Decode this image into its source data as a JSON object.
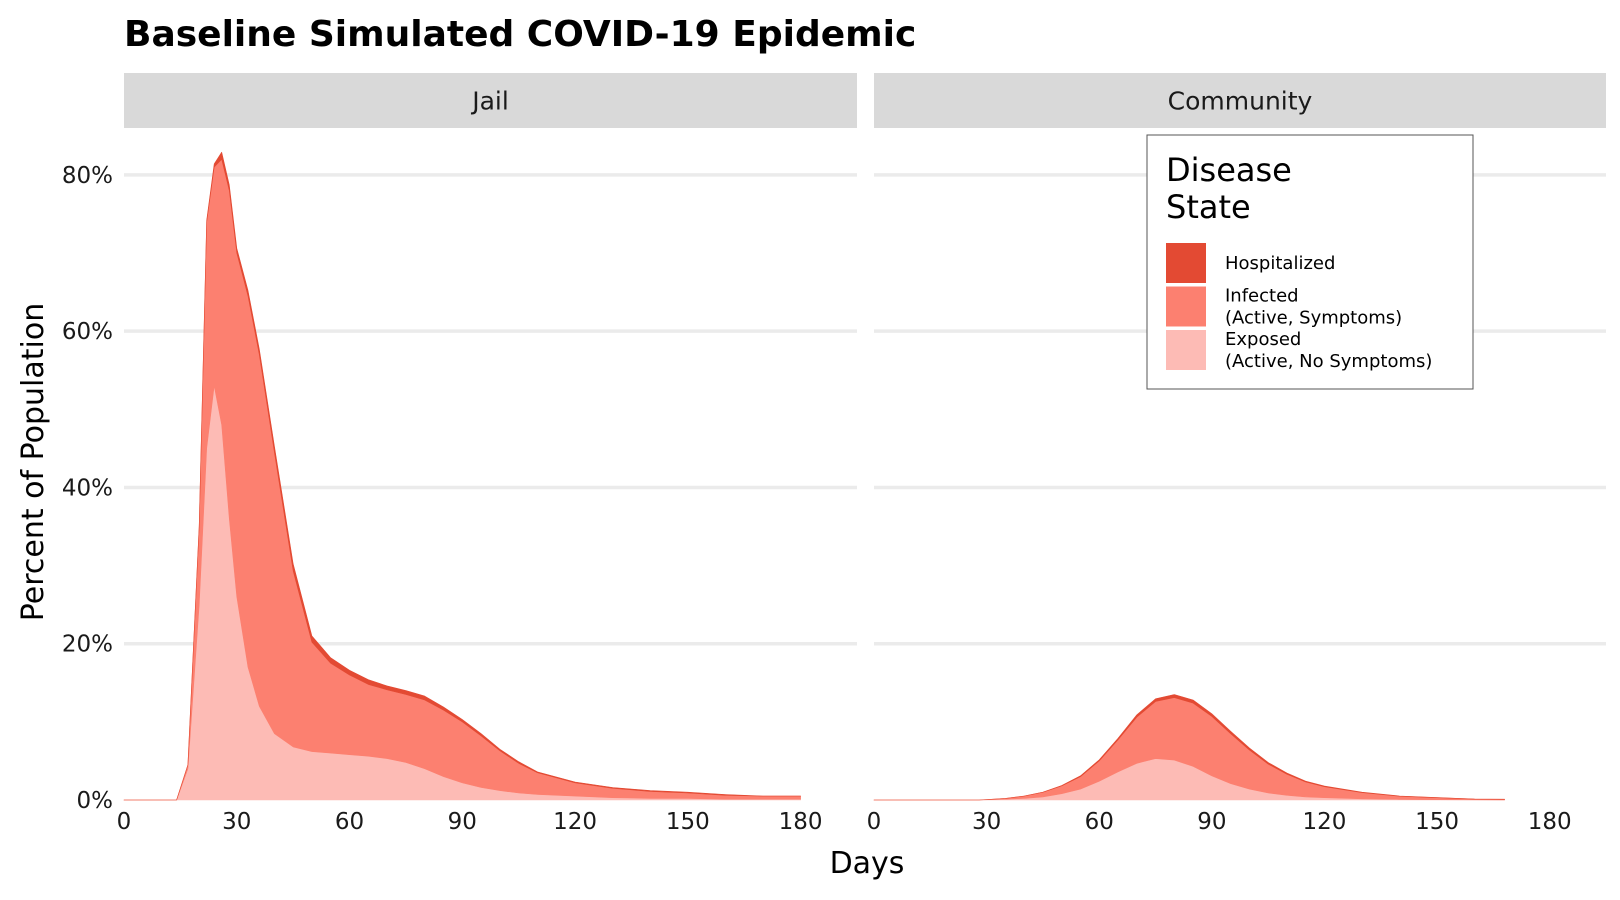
{
  "chart_data": {
    "type": "area",
    "stacked": true,
    "title": "Baseline Simulated COVID-19 Epidemic",
    "xlabel": "Days",
    "ylabel": "Percent of Population",
    "xlim": [
      0,
      195
    ],
    "ylim": [
      0,
      0.86
    ],
    "x_ticks": [
      0,
      30,
      60,
      90,
      120,
      150,
      180
    ],
    "y_ticks": [
      0,
      0.2,
      0.4,
      0.6,
      0.8
    ],
    "y_tick_labels": [
      "0%",
      "20%",
      "40%",
      "60%",
      "80%"
    ],
    "grid": true,
    "legend": {
      "title_lines": [
        "Disease",
        "State"
      ],
      "position": "inside-top-right",
      "entries": [
        {
          "key": "hospitalized",
          "lines": [
            "Hospitalized"
          ],
          "color": "#e34a33"
        },
        {
          "key": "infected",
          "lines": [
            "Infected",
            "(Active, Symptoms)"
          ],
          "color": "#fc8070"
        },
        {
          "key": "exposed",
          "lines": [
            "Exposed",
            "(Active, No Symptoms)"
          ],
          "color": "#fdbbb5"
        }
      ]
    },
    "colors": {
      "exposed": "#fdbbb5",
      "infected": "#fc8070",
      "hospitalized": "#e34a33",
      "strip_bg": "#d9d9d9",
      "grid": "#ebebeb"
    },
    "panels": [
      {
        "name": "Jail",
        "x": [
          0,
          14,
          17,
          20,
          22,
          24,
          26,
          28,
          30,
          33,
          36,
          40,
          45,
          50,
          55,
          60,
          65,
          70,
          75,
          80,
          85,
          90,
          95,
          100,
          105,
          110,
          120,
          130,
          140,
          150,
          160,
          170,
          180
        ],
        "series": {
          "exposed": [
            0,
            0.0,
            0.04,
            0.25,
            0.45,
            0.53,
            0.48,
            0.36,
            0.26,
            0.17,
            0.12,
            0.085,
            0.068,
            0.062,
            0.06,
            0.058,
            0.056,
            0.053,
            0.048,
            0.04,
            0.03,
            0.022,
            0.016,
            0.012,
            0.009,
            0.007,
            0.005,
            0.003,
            0.002,
            0.002,
            0.001,
            0.001,
            0.001
          ],
          "infected": [
            0,
            0.0,
            0.005,
            0.1,
            0.29,
            0.28,
            0.34,
            0.42,
            0.44,
            0.475,
            0.45,
            0.36,
            0.225,
            0.14,
            0.115,
            0.102,
            0.092,
            0.088,
            0.087,
            0.088,
            0.085,
            0.078,
            0.066,
            0.051,
            0.038,
            0.028,
            0.017,
            0.012,
            0.009,
            0.007,
            0.005,
            0.004,
            0.004
          ],
          "hospitalized": [
            0,
            0.0,
            0.0,
            0.001,
            0.002,
            0.004,
            0.009,
            0.007,
            0.006,
            0.007,
            0.007,
            0.008,
            0.009,
            0.008,
            0.007,
            0.006,
            0.006,
            0.005,
            0.005,
            0.005,
            0.004,
            0.003,
            0.003,
            0.002,
            0.002,
            0.001,
            0.001,
            0.001,
            0.001,
            0.001,
            0.001,
            0.0,
            0.0
          ]
        }
      },
      {
        "name": "Community",
        "x": [
          0,
          28,
          35,
          40,
          45,
          50,
          55,
          60,
          65,
          70,
          75,
          80,
          85,
          90,
          95,
          100,
          105,
          110,
          115,
          120,
          130,
          140,
          150,
          160,
          168
        ],
        "series": {
          "exposed": [
            0,
            0.0,
            0.001,
            0.002,
            0.004,
            0.008,
            0.014,
            0.024,
            0.036,
            0.047,
            0.053,
            0.051,
            0.043,
            0.031,
            0.021,
            0.014,
            0.009,
            0.006,
            0.004,
            0.003,
            0.0015,
            0.0008,
            0.0004,
            0.0002,
            0.0001
          ],
          "infected": [
            0,
            0.0,
            0.001,
            0.003,
            0.006,
            0.01,
            0.016,
            0.026,
            0.041,
            0.059,
            0.073,
            0.08,
            0.081,
            0.076,
            0.064,
            0.05,
            0.037,
            0.027,
            0.019,
            0.014,
            0.008,
            0.004,
            0.0025,
            0.001,
            0.0008
          ],
          "hospitalized": [
            0,
            0.0,
            0.0,
            0.0,
            0.0,
            0.0005,
            0.001,
            0.0015,
            0.002,
            0.003,
            0.0035,
            0.004,
            0.004,
            0.0035,
            0.003,
            0.0025,
            0.002,
            0.0015,
            0.001,
            0.0008,
            0.0005,
            0.0003,
            0.0002,
            0.0001,
            0.0001
          ]
        }
      }
    ]
  }
}
